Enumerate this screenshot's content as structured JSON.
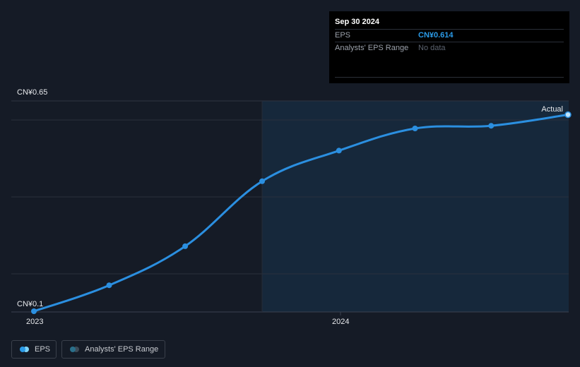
{
  "chart_data": {
    "type": "line",
    "y_axis": {
      "top_label": "CN¥0.65",
      "bottom_label": "CN¥0.1",
      "ylim": [
        0.1,
        0.65
      ]
    },
    "x_axis": {
      "tick_labels": [
        "2023",
        "2024"
      ]
    },
    "actual_label": "Actual",
    "series": [
      {
        "name": "EPS",
        "color": "#2b8fe0",
        "points": [
          {
            "x": "2022-12-31",
            "y": 0.1
          },
          {
            "x": "2023-03-31",
            "y": 0.168
          },
          {
            "x": "2023-06-30",
            "y": 0.27
          },
          {
            "x": "2023-09-30",
            "y": 0.44
          },
          {
            "x": "2023-12-31",
            "y": 0.52
          },
          {
            "x": "2024-03-31",
            "y": 0.578
          },
          {
            "x": "2024-06-30",
            "y": 0.585
          },
          {
            "x": "2024-09-30",
            "y": 0.614
          }
        ]
      }
    ],
    "grid": true
  },
  "tooltip": {
    "date": "Sep 30 2024",
    "rows": [
      {
        "label": "EPS",
        "value": "CN¥0.614"
      },
      {
        "label": "Analysts' EPS Range",
        "value": "No data"
      }
    ]
  },
  "legend": [
    {
      "label": "EPS",
      "colors": [
        "#2b9be8",
        "#7fd3f7"
      ]
    },
    {
      "label": "Analysts' EPS Range",
      "colors": [
        "#2a6f8a",
        "#3d4a56"
      ]
    }
  ]
}
